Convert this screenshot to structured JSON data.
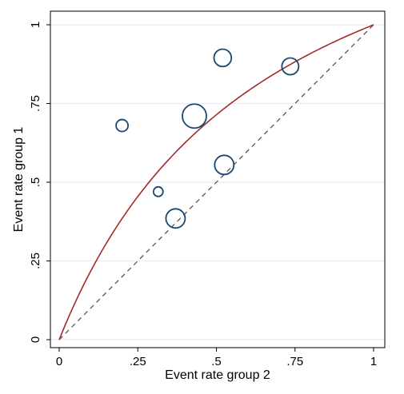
{
  "chart_data": {
    "type": "scatter",
    "title": "",
    "xlabel": "Event rate group 2",
    "ylabel": "Event rate group 1",
    "xlim": [
      0,
      1
    ],
    "ylim": [
      0,
      1
    ],
    "x_ticks": [
      0,
      0.25,
      0.5,
      0.75,
      1
    ],
    "y_ticks": [
      0,
      0.25,
      0.5,
      0.75,
      1
    ],
    "x_tick_labels": [
      "0",
      ".25",
      ".5",
      ".75",
      "1"
    ],
    "y_tick_labels": [
      "0",
      ".25",
      ".5",
      ".75",
      "1"
    ],
    "grid": true,
    "points": [
      {
        "x": 0.2,
        "y": 0.68,
        "size": 1.0
      },
      {
        "x": 0.315,
        "y": 0.47,
        "size": 0.8
      },
      {
        "x": 0.37,
        "y": 0.385,
        "size": 1.6
      },
      {
        "x": 0.43,
        "y": 0.71,
        "size": 2.0
      },
      {
        "x": 0.52,
        "y": 0.895,
        "size": 1.45
      },
      {
        "x": 0.525,
        "y": 0.555,
        "size": 1.6
      },
      {
        "x": 0.735,
        "y": 0.868,
        "size": 1.4
      }
    ],
    "reference_line": {
      "style": "dashed",
      "from": [
        0,
        0
      ],
      "to": [
        1,
        1
      ],
      "color": "#555555"
    },
    "fitted_curve": {
      "odds_ratio": 2.5,
      "color": "#a52a2a"
    },
    "marker_color": "#1a476f",
    "background": "#ffffff",
    "grid_color": "#e8eff5"
  }
}
